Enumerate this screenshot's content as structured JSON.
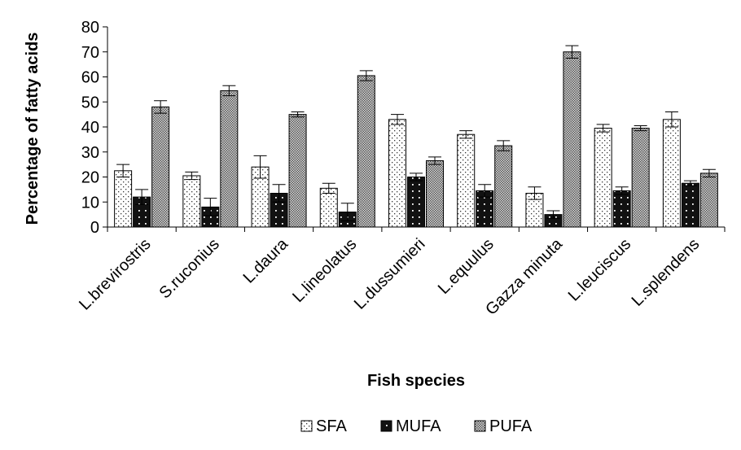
{
  "chart_data": {
    "type": "bar",
    "title": "",
    "xlabel": "Fish species",
    "ylabel": "Percentage of fatty acids",
    "ylim": [
      0,
      80
    ],
    "yticks": [
      0,
      10,
      20,
      30,
      40,
      50,
      60,
      70,
      80
    ],
    "grid": false,
    "legend": "bottom",
    "categories": [
      "L.brevirostris",
      "S.ruconius",
      "L.daura",
      "L.lineolatus",
      "L.dussumieri",
      "L.equulus",
      "Gazza minuta",
      "L.leuciscus",
      "L.splendens"
    ],
    "series": [
      {
        "name": "SFA",
        "pattern": "dots-light",
        "values": [
          22.5,
          20.5,
          24,
          15.5,
          43,
          37,
          13.5,
          39.5,
          43
        ],
        "errors": [
          2.5,
          1.5,
          4.5,
          2,
          2,
          1.5,
          2.5,
          1.5,
          3
        ]
      },
      {
        "name": "MUFA",
        "pattern": "dots-dark",
        "values": [
          12,
          8,
          13.5,
          6,
          20,
          14.5,
          5,
          14.5,
          17.5
        ],
        "errors": [
          3,
          3.5,
          3.5,
          3.5,
          1.5,
          2.5,
          1.5,
          1.5,
          1
        ]
      },
      {
        "name": "PUFA",
        "pattern": "checker",
        "values": [
          48,
          54.5,
          45,
          60.5,
          26.5,
          32.5,
          70,
          39.5,
          21.5
        ],
        "errors": [
          2.5,
          2,
          1,
          2,
          1.5,
          2,
          2.5,
          1,
          1.5
        ]
      }
    ]
  }
}
